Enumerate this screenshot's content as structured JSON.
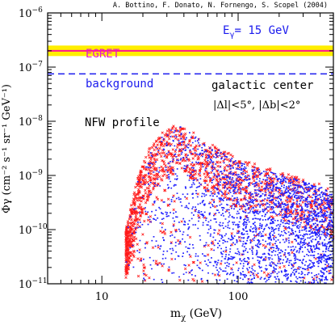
{
  "chart_data": {
    "type": "scatter",
    "credit": "A. Bottino, F. Donato, N. Fornengo, S. Scopel (2004)",
    "xlabel": {
      "base": "m",
      "sub": "χ",
      "unit": " (GeV)"
    },
    "ylabel": "Φγ (cm⁻² s⁻¹ sr⁻¹ GeV⁻¹)",
    "x_scale": "log",
    "y_scale": "log",
    "xlim": [
      4,
      500
    ],
    "ylim": [
      1e-11,
      1e-06
    ],
    "x_ticks": [
      {
        "value": 10,
        "label": "10"
      },
      {
        "value": 100,
        "label": "100"
      }
    ],
    "y_ticks": [
      {
        "value": 1e-11,
        "mant": "10",
        "exp": "−11"
      },
      {
        "value": 1e-10,
        "mant": "10",
        "exp": "−10"
      },
      {
        "value": 1e-09,
        "mant": "10",
        "exp": "−9"
      },
      {
        "value": 1e-08,
        "mant": "10",
        "exp": "−8"
      },
      {
        "value": 1e-07,
        "mant": "10",
        "exp": "−7"
      },
      {
        "value": 1e-06,
        "mant": "10",
        "exp": "−6"
      }
    ],
    "egret": {
      "label": "EGRET",
      "band": [
        1.6e-07,
        2.5e-07
      ],
      "center": 2e-07,
      "band_color": "#ffee00",
      "line_color": "#ff1493"
    },
    "background": {
      "label": "background",
      "value": 7.5e-08,
      "color": "#1a1aee"
    },
    "energy_label": {
      "base": "E",
      "sub": "γ",
      "text": "= 15 GeV"
    },
    "region_label": {
      "title": "galactic center",
      "l_cut": "|Δl|<5°,",
      "b_cut": "|Δb|<2°"
    },
    "profile_label": "NFW profile",
    "series": [
      {
        "marker": "x",
        "color": "#ff1a1a",
        "note": "red crosses"
      },
      {
        "marker": "dot",
        "color": "#2020ff",
        "note": "blue dots"
      }
    ],
    "envelope": [
      {
        "x": 15,
        "lo": 1.5e-11,
        "hi": 1e-10
      },
      {
        "x": 18,
        "lo": 1.2e-11,
        "hi": 8e-10
      },
      {
        "x": 22,
        "lo": 1e-11,
        "hi": 3e-09
      },
      {
        "x": 27,
        "lo": 1e-11,
        "hi": 6e-09
      },
      {
        "x": 32,
        "lo": 1e-11,
        "hi": 8e-09
      },
      {
        "x": 38,
        "lo": 1e-11,
        "hi": 9e-09
      },
      {
        "x": 45,
        "lo": 1e-11,
        "hi": 7e-09
      },
      {
        "x": 60,
        "lo": 1e-11,
        "hi": 4e-09
      },
      {
        "x": 80,
        "lo": 1e-11,
        "hi": 3e-09
      },
      {
        "x": 100,
        "lo": 1e-11,
        "hi": 2e-09
      },
      {
        "x": 150,
        "lo": 1e-11,
        "hi": 1.5e-09
      },
      {
        "x": 250,
        "lo": 1e-11,
        "hi": 1e-09
      },
      {
        "x": 400,
        "lo": 1e-11,
        "hi": 7e-10
      },
      {
        "x": 500,
        "lo": 1e-11,
        "hi": 5e-10
      }
    ]
  }
}
